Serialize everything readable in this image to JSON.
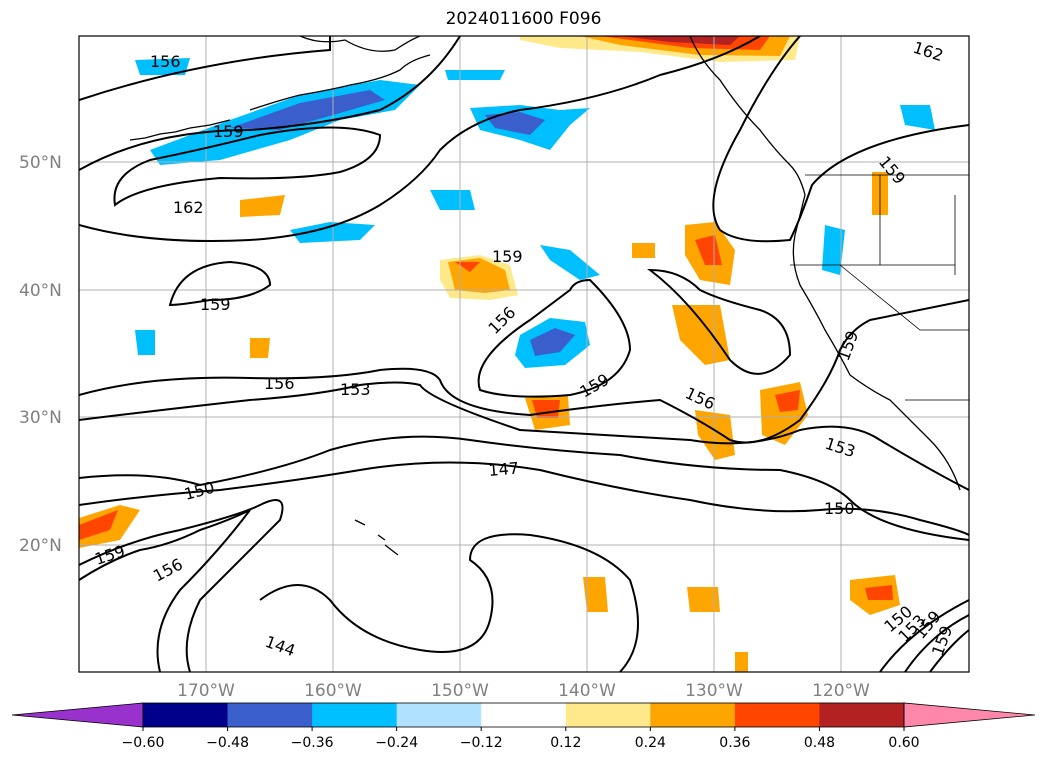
{
  "title": "2024011600 F096",
  "lat_labels": [
    "50°N",
    "40°N",
    "30°N",
    "20°N"
  ],
  "lon_labels": [
    "170°W",
    "160°W",
    "150°W",
    "140°W",
    "130°W",
    "120°W"
  ],
  "contour_labels": [
    "156",
    "159",
    "162",
    "162",
    "159",
    "159",
    "159",
    "156",
    "156",
    "153",
    "159",
    "156",
    "153",
    "150",
    "147",
    "150",
    "159",
    "156",
    "144",
    "150",
    "153",
    "159",
    "159",
    "159"
  ],
  "colorbar": {
    "ticks": [
      "−0.60",
      "−0.48",
      "−0.36",
      "−0.24",
      "−0.12",
      "0.12",
      "0.24",
      "0.36",
      "0.48",
      "0.60"
    ],
    "colors": [
      "#9932cc",
      "#00008b",
      "#3a5fcd",
      "#00bfff",
      "#b0e2ff",
      "#ffffff",
      "#ffe98a",
      "#ffa500",
      "#ff4500",
      "#b22222",
      "#ff88aa"
    ]
  }
}
